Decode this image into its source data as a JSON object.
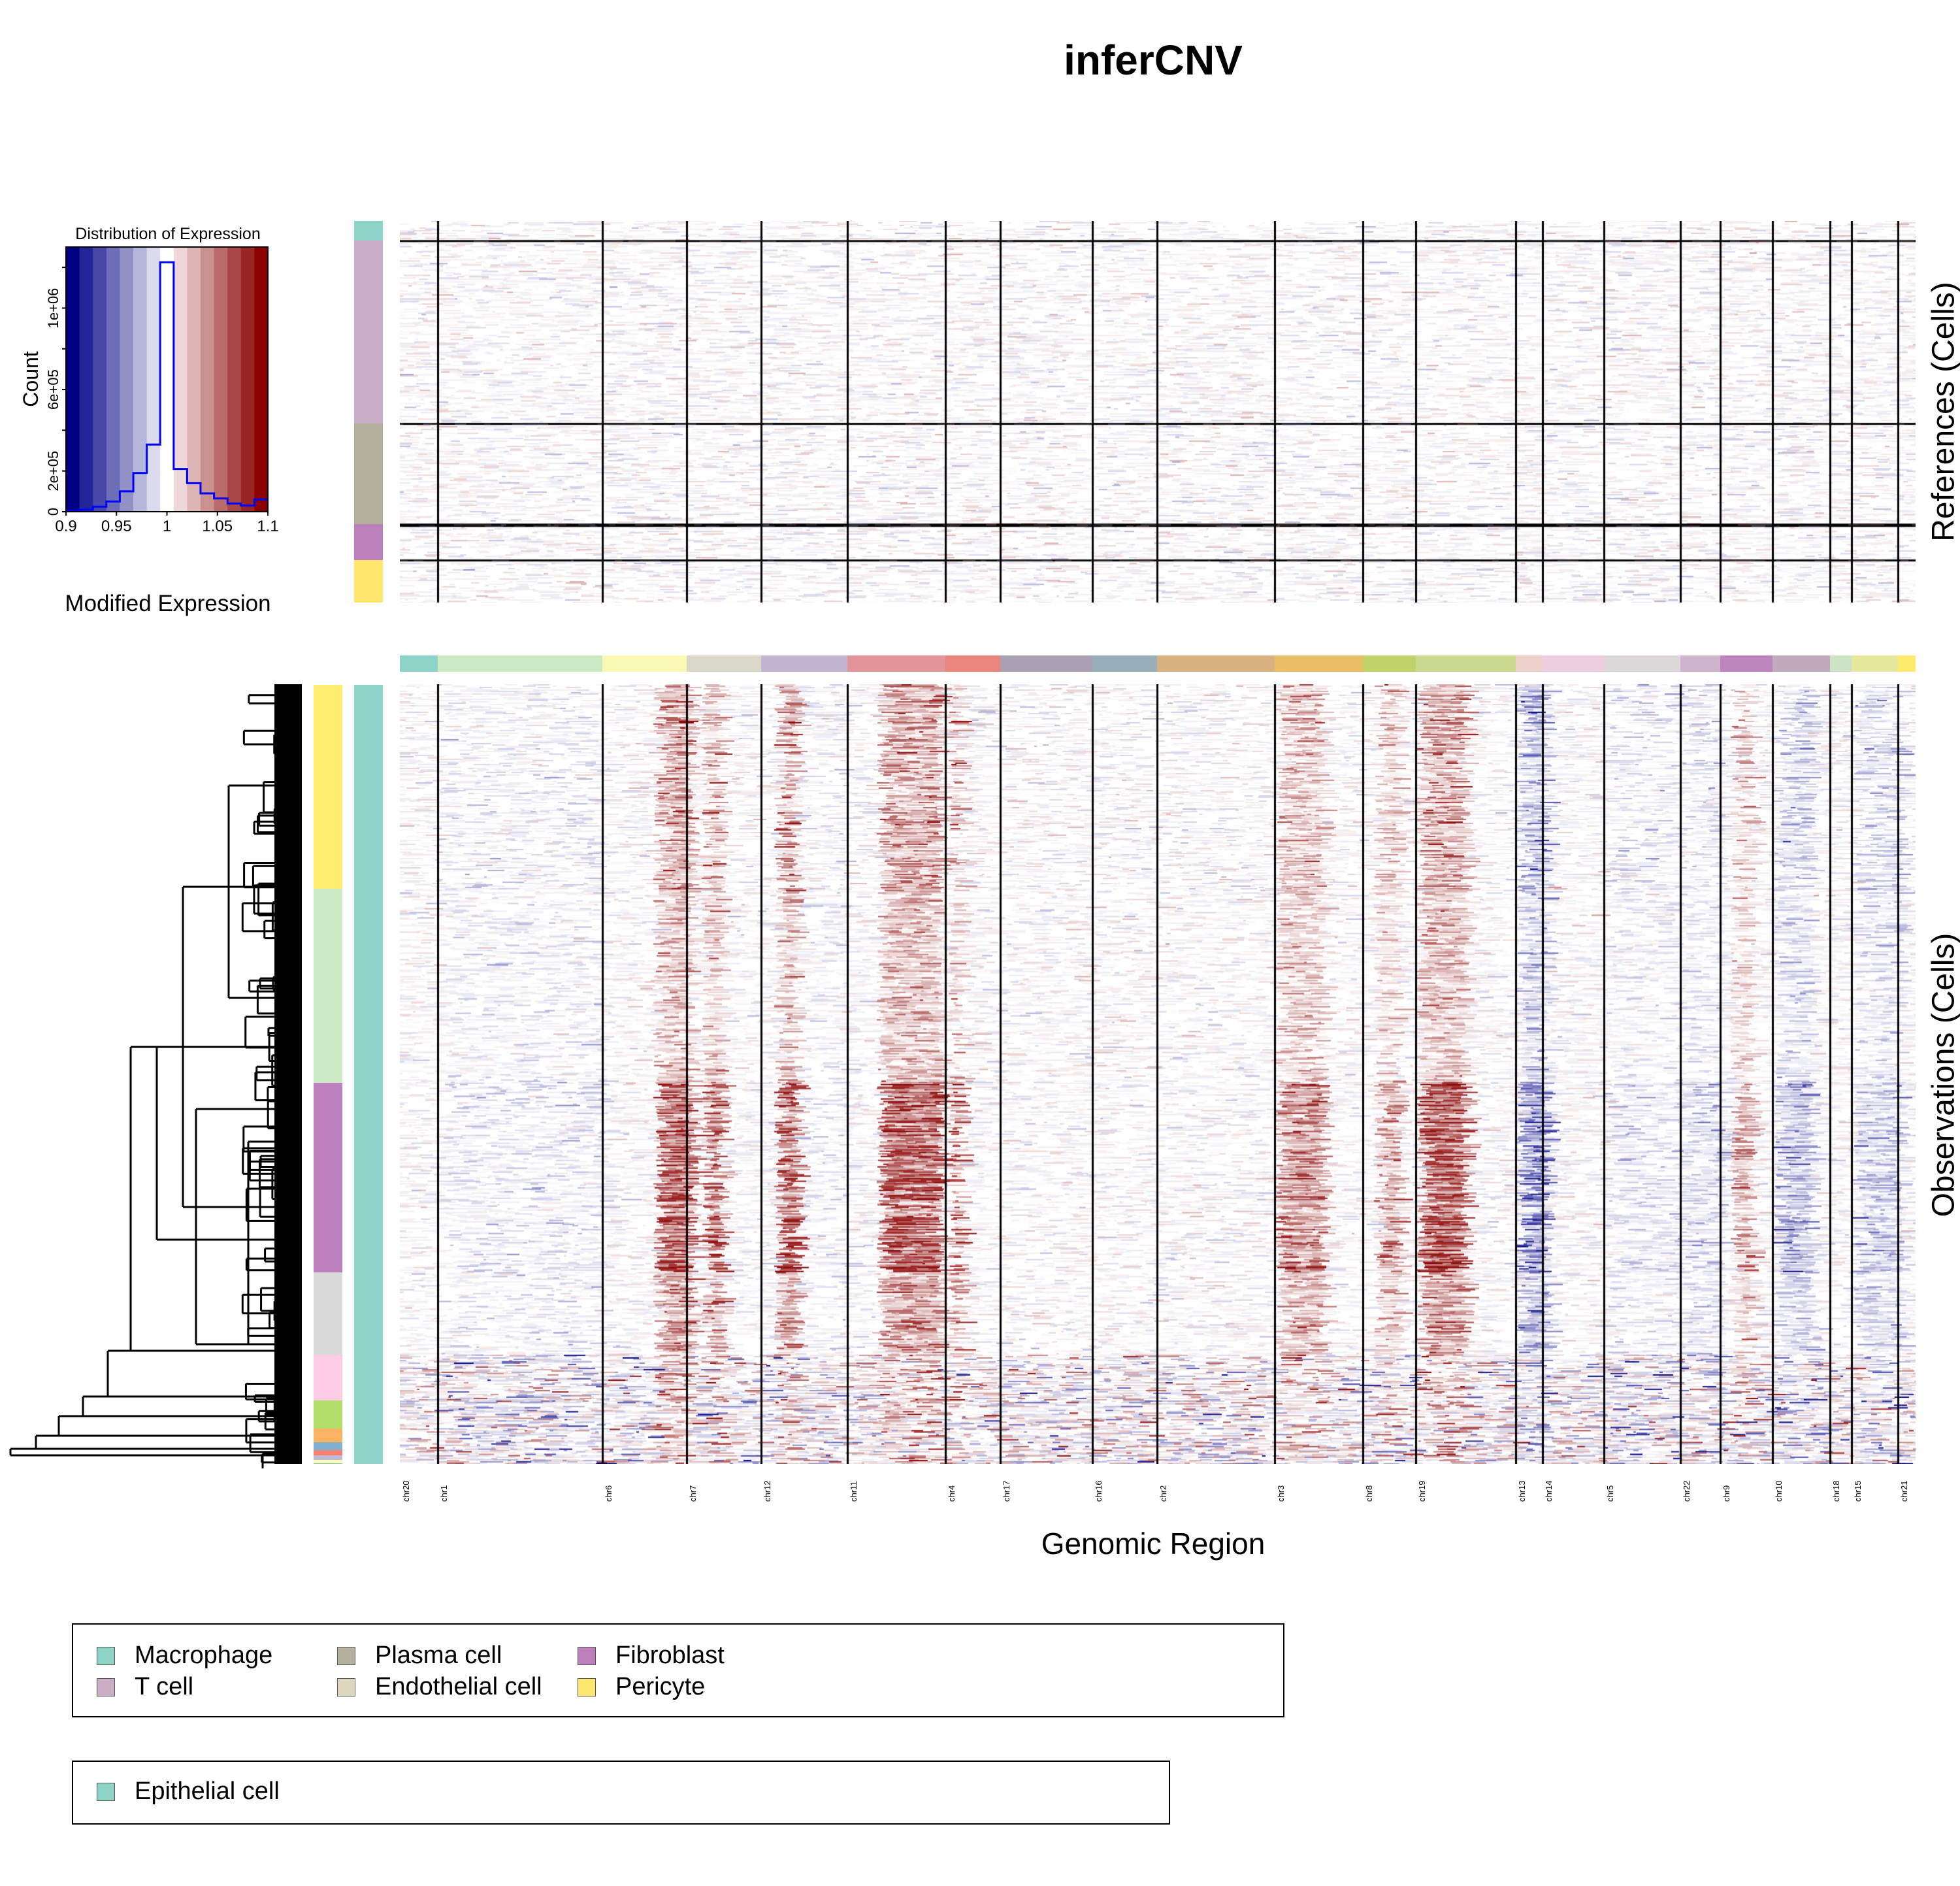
{
  "title": "inferCNV",
  "colors": {
    "palette": [
      "#000080",
      "#25259A",
      "#4848A8",
      "#6E6EB8",
      "#9191C8",
      "#B6B6DB",
      "#DADAEC",
      "#FFFFFF",
      "#EDD7D8",
      "#DDB4B4",
      "#CB9090",
      "#BA6C6C",
      "#A74747",
      "#982424",
      "#8B0000"
    ],
    "histogram_line": "#0000FF"
  },
  "chart_data": {
    "type": "heatmap",
    "histogram": {
      "type": "bar",
      "title": "Distribution of Expression",
      "xlabel": "Modified Expression",
      "ylabel": "Count",
      "xlim": [
        0.9,
        1.1
      ],
      "ylim": [
        0,
        1300000
      ],
      "xticks": [
        "0.9",
        "0.95",
        "1",
        "1.05",
        "1.1"
      ],
      "yticks": [
        "0",
        "2e+05",
        "6e+05",
        "1e+06"
      ],
      "ytick_values": [
        0,
        200000,
        600000,
        1000000
      ],
      "bin_edges": [
        0.9,
        0.9133,
        0.9267,
        0.94,
        0.9533,
        0.9667,
        0.98,
        0.9933,
        1.0067,
        1.02,
        1.0333,
        1.0467,
        1.06,
        1.0733,
        1.0867,
        1.1
      ],
      "counts": [
        5000,
        10000,
        25000,
        50000,
        100000,
        190000,
        330000,
        1225000,
        210000,
        140000,
        90000,
        65000,
        40000,
        30000,
        60000
      ]
    },
    "xlabel": "Genomic Region",
    "chromosomes": [
      {
        "name": "chr20",
        "start": 0,
        "end": 58,
        "color": "#8DD3C7"
      },
      {
        "name": "chr1",
        "start": 58,
        "end": 310,
        "color": "#CCEBC5"
      },
      {
        "name": "chr6",
        "start": 310,
        "end": 439,
        "color": "#F9F9B4"
      },
      {
        "name": "chr7",
        "start": 439,
        "end": 553,
        "color": "#D9D8CB"
      },
      {
        "name": "chr12",
        "start": 553,
        "end": 685,
        "color": "#C1B4D0"
      },
      {
        "name": "chr11",
        "start": 685,
        "end": 835,
        "color": "#E29598"
      },
      {
        "name": "chr4",
        "start": 835,
        "end": 919,
        "color": "#E8857C"
      },
      {
        "name": "chr17",
        "start": 919,
        "end": 1060,
        "color": "#A9A0B2"
      },
      {
        "name": "chr16",
        "start": 1060,
        "end": 1159,
        "color": "#97AFBB"
      },
      {
        "name": "chr2",
        "start": 1159,
        "end": 1339,
        "color": "#D9B282"
      },
      {
        "name": "chr3",
        "start": 1339,
        "end": 1474,
        "color": "#E9BD66"
      },
      {
        "name": "chr8",
        "start": 1474,
        "end": 1555,
        "color": "#C2D26A"
      },
      {
        "name": "chr19",
        "start": 1555,
        "end": 1708,
        "color": "#C9DA8F"
      },
      {
        "name": "chr13",
        "start": 1708,
        "end": 1749,
        "color": "#EDCFCC"
      },
      {
        "name": "chr14",
        "start": 1749,
        "end": 1843,
        "color": "#EECFDF"
      },
      {
        "name": "chr5",
        "start": 1843,
        "end": 1960,
        "color": "#DCD8D9"
      },
      {
        "name": "chr22",
        "start": 1960,
        "end": 2021,
        "color": "#CEB4CD"
      },
      {
        "name": "chr9",
        "start": 2021,
        "end": 2101,
        "color": "#BC86BC"
      },
      {
        "name": "chr10",
        "start": 2101,
        "end": 2189,
        "color": "#C1AABE"
      },
      {
        "name": "chr18",
        "start": 2189,
        "end": 2222,
        "color": "#CCE3C6"
      },
      {
        "name": "chr15",
        "start": 2222,
        "end": 2293,
        "color": "#E4E99E"
      },
      {
        "name": "chr21",
        "start": 2293,
        "end": 2320,
        "color": "#FFEB6B"
      }
    ],
    "references": {
      "label": "References (Cells)",
      "groups": [
        {
          "name": "Macrophage",
          "fraction": 0.052,
          "color": "#8DD3C7"
        },
        {
          "name": "T cell",
          "fraction": 0.479,
          "color": "#C9AEC6"
        },
        {
          "name": "Plasma cell",
          "fraction": 0.264,
          "color": "#B3B09D"
        },
        {
          "name": "Fibroblast",
          "fraction": 0.094,
          "color": "#BC80BD"
        },
        {
          "name": "Pericyte",
          "fraction": 0.111,
          "color": "#FFE76F"
        }
      ]
    },
    "observations": {
      "label": "Observations (Cells)",
      "cell_type": {
        "name": "Epithelial cell",
        "color": "#8DD3C7"
      },
      "clusters": [
        {
          "fraction": 0.262,
          "color": "#FFED6F",
          "intensity": 0.65
        },
        {
          "fraction": 0.249,
          "color": "#CCEBC5",
          "intensity": 0.55
        },
        {
          "fraction": 0.243,
          "color": "#BC80BD",
          "intensity": 1.0
        },
        {
          "fraction": 0.106,
          "color": "#D9D9D9",
          "intensity": 0.7
        },
        {
          "fraction": 0.059,
          "color": "#FCCDE5",
          "intensity": 0.35
        },
        {
          "fraction": 0.036,
          "color": "#B3DE69",
          "intensity": 0.3
        },
        {
          "fraction": 0.017,
          "color": "#FDB462",
          "intensity": 0.3
        },
        {
          "fraction": 0.01,
          "color": "#80B1D3",
          "intensity": 0.3
        },
        {
          "fraction": 0.007,
          "color": "#FB8072",
          "intensity": 0.3
        },
        {
          "fraction": 0.006,
          "color": "#BEBADA",
          "intensity": 0.3
        },
        {
          "fraction": 0.004,
          "color": "#FFFFB3",
          "intensity": 0.3
        },
        {
          "fraction": 0.001,
          "color": "#8DD3C7",
          "intensity": 0.3
        }
      ]
    }
  },
  "legend_references": [
    {
      "label": "Macrophage",
      "color": "#8DD3C7"
    },
    {
      "label": "T cell",
      "color": "#C9AEC6"
    },
    {
      "label": "Plasma cell",
      "color": "#B3B09D"
    },
    {
      "label": "Endothelial cell",
      "color": "#DDD5C0"
    },
    {
      "label": "Fibroblast",
      "color": "#BC80BD"
    },
    {
      "label": "Pericyte",
      "color": "#FFE76F"
    }
  ],
  "legend_observations": [
    {
      "label": "Epithelial cell",
      "color": "#8DD3C7"
    }
  ]
}
